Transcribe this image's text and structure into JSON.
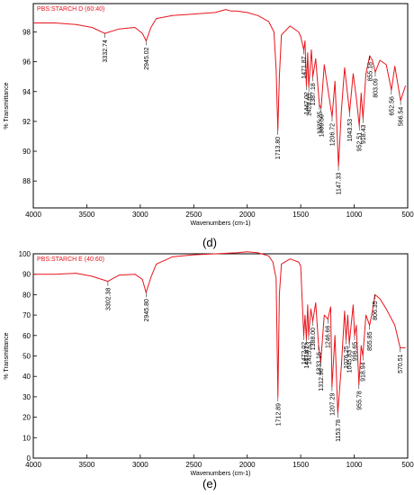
{
  "chart_data": [
    {
      "type": "line",
      "panel_label": "(d)",
      "title": "PBS:STARCH D (60:40)",
      "xlabel": "Wavenumbers (cm-1)",
      "ylabel": "% Transmittance",
      "xlim": [
        4000,
        500
      ],
      "ylim": [
        86.2,
        99.9
      ],
      "xticks": [
        "4000",
        "3500",
        "3000",
        "2500",
        "2000",
        "1500",
        "1000",
        "500"
      ],
      "yticks": [
        "98",
        "96",
        "94",
        "92",
        "90",
        "88"
      ],
      "yticks_values": [
        98,
        96,
        94,
        92,
        90,
        88
      ],
      "color": "#e8141c",
      "x": [
        4000,
        3800,
        3600,
        3450,
        3332.74,
        3200,
        3050,
        2980,
        2945.02,
        2900,
        2850,
        2700,
        2500,
        2300,
        2200,
        2150,
        2100,
        2000,
        1900,
        1800,
        1750,
        1730,
        1713.8,
        1700,
        1680,
        1600,
        1520,
        1500,
        1471.87,
        1460,
        1447.02,
        1435,
        1424.65,
        1400,
        1387.18,
        1360,
        1325.25,
        1309.5,
        1280,
        1206.72,
        1180,
        1147.33,
        1120,
        1090,
        1043.53,
        1010,
        980,
        952.51,
        935,
        918.43,
        890,
        855.18,
        830,
        803.09,
        760,
        700,
        652.56,
        620,
        566.54,
        520
      ],
      "y": [
        98.6,
        98.6,
        98.5,
        98.3,
        97.9,
        98.2,
        98.3,
        97.9,
        97.4,
        98.3,
        98.9,
        99.1,
        99.2,
        99.3,
        99.5,
        99.4,
        99.4,
        99.3,
        99.1,
        98.7,
        98.0,
        95.5,
        91.4,
        95.0,
        97.8,
        98.4,
        98.0,
        97.7,
        96.8,
        97.4,
        94.4,
        96.6,
        94.3,
        96.8,
        95.0,
        96.2,
        93.1,
        92.9,
        95.8,
        92.3,
        94.7,
        89.0,
        92.7,
        95.6,
        92.6,
        95.2,
        93.6,
        91.7,
        93.9,
        92.2,
        95.2,
        96.4,
        96.1,
        95.3,
        96.1,
        95.8,
        94.1,
        95.7,
        93.4,
        94.4
      ],
      "annotations": [
        {
          "label": "3332.74",
          "x": 3332.74,
          "y": 97.9
        },
        {
          "label": "2945.02",
          "x": 2945.02,
          "y": 97.4
        },
        {
          "label": "1713.80",
          "x": 1713.8,
          "y": 91.4
        },
        {
          "label": "1471.87",
          "x": 1471.87,
          "y": 96.8
        },
        {
          "label": "1447.02",
          "x": 1447.02,
          "y": 94.4
        },
        {
          "label": "1424.65",
          "x": 1424.65,
          "y": 94.3
        },
        {
          "label": "1387.18",
          "x": 1387.18,
          "y": 95.0
        },
        {
          "label": "1325.25",
          "x": 1325.25,
          "y": 93.1
        },
        {
          "label": "1309.50",
          "x": 1309.5,
          "y": 92.9
        },
        {
          "label": "1206.72",
          "x": 1206.72,
          "y": 92.3
        },
        {
          "label": "1147.33",
          "x": 1147.33,
          "y": 89.0
        },
        {
          "label": "1043.53",
          "x": 1043.53,
          "y": 92.6
        },
        {
          "label": "952.51",
          "x": 952.51,
          "y": 91.7
        },
        {
          "label": "918.43",
          "x": 918.43,
          "y": 92.2
        },
        {
          "label": "855.18",
          "x": 855.18,
          "y": 96.4
        },
        {
          "label": "803.09",
          "x": 803.09,
          "y": 95.3
        },
        {
          "label": "652.56",
          "x": 652.56,
          "y": 94.1
        },
        {
          "label": "566.54",
          "x": 566.54,
          "y": 93.4
        }
      ]
    },
    {
      "type": "line",
      "panel_label": "(e)",
      "title": "PBS:STARCH E (40:60)",
      "xlabel": "Wavenumbers (cm-1)",
      "ylabel": "% Transmittance",
      "xlim": [
        4000,
        500
      ],
      "ylim": [
        0,
        100
      ],
      "xticks": [
        "4000",
        "3500",
        "3000",
        "2500",
        "2000",
        "1500",
        "1000",
        "500"
      ],
      "yticks": [
        "100",
        "90",
        "80",
        "70",
        "60",
        "50",
        "40",
        "30",
        "20",
        "10",
        "0"
      ],
      "yticks_values": [
        100,
        90,
        80,
        70,
        60,
        50,
        40,
        30,
        20,
        10,
        0
      ],
      "color": "#e8141c",
      "x": [
        4000,
        3800,
        3600,
        3450,
        3302.38,
        3200,
        3050,
        2980,
        2945.8,
        2900,
        2850,
        2700,
        2500,
        2300,
        2100,
        2000,
        1900,
        1800,
        1760,
        1730,
        1712.89,
        1700,
        1680,
        1600,
        1520,
        1500,
        1472.02,
        1460,
        1447.47,
        1435,
        1425.63,
        1405,
        1388,
        1360,
        1333.16,
        1312.96,
        1280,
        1246.66,
        1220,
        1207.29,
        1180,
        1153.78,
        1120,
        1090,
        1076.25,
        1060,
        1045.83,
        1010,
        996.65,
        980,
        955.78,
        935,
        918.94,
        890,
        855.85,
        830,
        806.35,
        760,
        700,
        620,
        570.51,
        520
      ],
      "y": [
        90,
        90,
        90.5,
        89,
        86.5,
        89.5,
        90,
        87.5,
        81,
        88.5,
        95,
        98.5,
        99.5,
        100,
        100.5,
        101,
        100.5,
        99,
        96,
        88,
        30,
        80,
        95,
        97.5,
        96,
        94,
        60,
        70,
        58,
        75,
        60,
        73,
        67,
        76,
        55,
        47,
        70,
        68,
        74,
        35,
        60,
        22,
        45,
        72,
        58,
        70,
        56,
        75,
        60,
        65,
        36,
        55,
        50,
        70,
        65,
        72,
        80,
        78,
        73,
        65,
        54,
        54
      ],
      "annotations": [
        {
          "label": "3302.38",
          "x": 3302.38,
          "y": 86.5
        },
        {
          "label": "2945.80",
          "x": 2945.8,
          "y": 81
        },
        {
          "label": "1712.89",
          "x": 1712.89,
          "y": 30
        },
        {
          "label": "1472.02",
          "x": 1472.02,
          "y": 60
        },
        {
          "label": "1447.47",
          "x": 1447.47,
          "y": 58
        },
        {
          "label": "1425.63",
          "x": 1425.63,
          "y": 60
        },
        {
          "label": "1388.00",
          "x": 1388,
          "y": 67
        },
        {
          "label": "1333.16",
          "x": 1333.16,
          "y": 55
        },
        {
          "label": "1312.96",
          "x": 1312.96,
          "y": 47
        },
        {
          "label": "1246.66",
          "x": 1246.66,
          "y": 68
        },
        {
          "label": "1207.29",
          "x": 1207.29,
          "y": 35
        },
        {
          "label": "1153.78",
          "x": 1153.78,
          "y": 22
        },
        {
          "label": "1076.25",
          "x": 1076.25,
          "y": 58
        },
        {
          "label": "1045.83",
          "x": 1045.83,
          "y": 56
        },
        {
          "label": "996.65",
          "x": 996.65,
          "y": 60
        },
        {
          "label": "955.78",
          "x": 955.78,
          "y": 36
        },
        {
          "label": "918.94",
          "x": 918.94,
          "y": 50
        },
        {
          "label": "855.85",
          "x": 855.85,
          "y": 65
        },
        {
          "label": "806.35",
          "x": 806.35,
          "y": 80
        },
        {
          "label": "570.51",
          "x": 570.51,
          "y": 54
        }
      ]
    }
  ]
}
